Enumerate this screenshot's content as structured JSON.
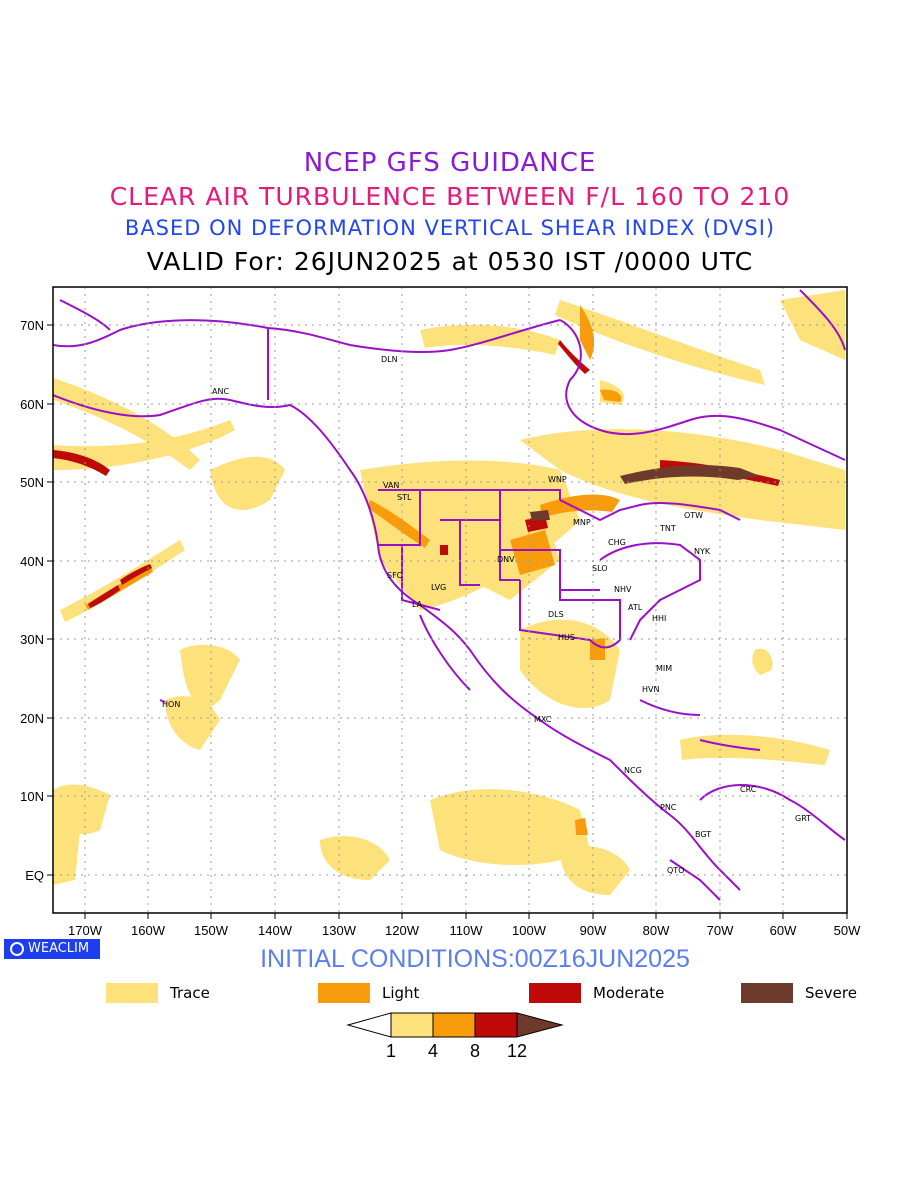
{
  "title": {
    "line1": "NCEP GFS GUIDANCE",
    "line2": "CLEAR AIR TURBULENCE BETWEEN F/L 160 TO 210",
    "line3": "BASED ON DEFORMATION VERTICAL SHEAR INDEX (DVSI)",
    "line4": "VALID For: 26JUN2025 at 0530 IST /0000 UTC"
  },
  "axes": {
    "lon_ticks": [
      "170W",
      "160W",
      "150W",
      "140W",
      "130W",
      "120W",
      "110W",
      "100W",
      "90W",
      "80W",
      "70W",
      "60W",
      "50W"
    ],
    "lat_ticks": [
      "70N",
      "60N",
      "50N",
      "40N",
      "30N",
      "20N",
      "10N",
      "EQ"
    ]
  },
  "stations": [
    {
      "name": "DLN"
    },
    {
      "name": "ANC"
    },
    {
      "name": "VAN"
    },
    {
      "name": "STL"
    },
    {
      "name": "WNP"
    },
    {
      "name": "MNP"
    },
    {
      "name": "OTW"
    },
    {
      "name": "TNT"
    },
    {
      "name": "CHG"
    },
    {
      "name": "NYK"
    },
    {
      "name": "DNV"
    },
    {
      "name": "SFC"
    },
    {
      "name": "LVG"
    },
    {
      "name": "SLO"
    },
    {
      "name": "LA"
    },
    {
      "name": "NHV"
    },
    {
      "name": "ATL"
    },
    {
      "name": "DLS"
    },
    {
      "name": "HHI"
    },
    {
      "name": "HUS"
    },
    {
      "name": "MIM"
    },
    {
      "name": "HVN"
    },
    {
      "name": "HON"
    },
    {
      "name": "MXC"
    },
    {
      "name": "NCG"
    },
    {
      "name": "CRC"
    },
    {
      "name": "PNC"
    },
    {
      "name": "GRT"
    },
    {
      "name": "BGT"
    },
    {
      "name": "QTO"
    }
  ],
  "badge": "WEACLIM",
  "initial_conditions": "INITIAL CONDITIONS:00Z16JUN2025",
  "legend": [
    {
      "label": "Trace",
      "color": "#fde17a"
    },
    {
      "label": "Light",
      "color": "#f99c0c"
    },
    {
      "label": "Moderate",
      "color": "#bf0a0a"
    },
    {
      "label": "Severe",
      "color": "#6e3a2c"
    }
  ],
  "colorbar": {
    "ticks": [
      "1",
      "4",
      "8",
      "12"
    ]
  },
  "colors": {
    "boundary": "#9a10c8",
    "grid": "#9a9a9a"
  }
}
